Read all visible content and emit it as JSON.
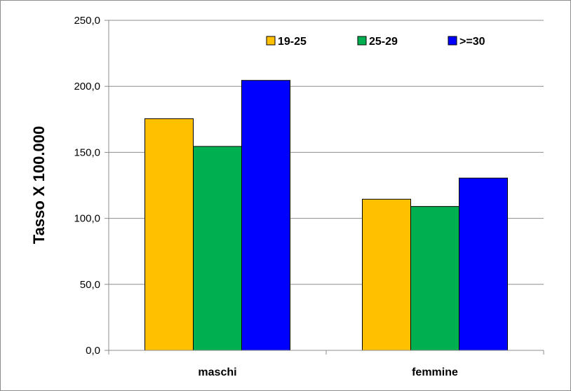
{
  "chart_data": {
    "type": "bar",
    "categories": [
      "maschi",
      "femmine"
    ],
    "series": [
      {
        "name": "19-25",
        "color": "#FFC000",
        "values": [
          175.5,
          114.5
        ]
      },
      {
        "name": "25-29",
        "color": "#00B050",
        "values": [
          154.5,
          109.0
        ]
      },
      {
        "name": ">=30",
        "color": "#0000FF",
        "values": [
          204.5,
          130.5
        ]
      }
    ],
    "title": "",
    "xlabel": "",
    "ylabel": "Tasso X 100.000",
    "ylim": [
      0,
      250
    ],
    "yticks": [
      "0,0",
      "50,0",
      "100,0",
      "150,0",
      "200,0",
      "250,0"
    ],
    "grid": true,
    "legend": "top-right"
  }
}
